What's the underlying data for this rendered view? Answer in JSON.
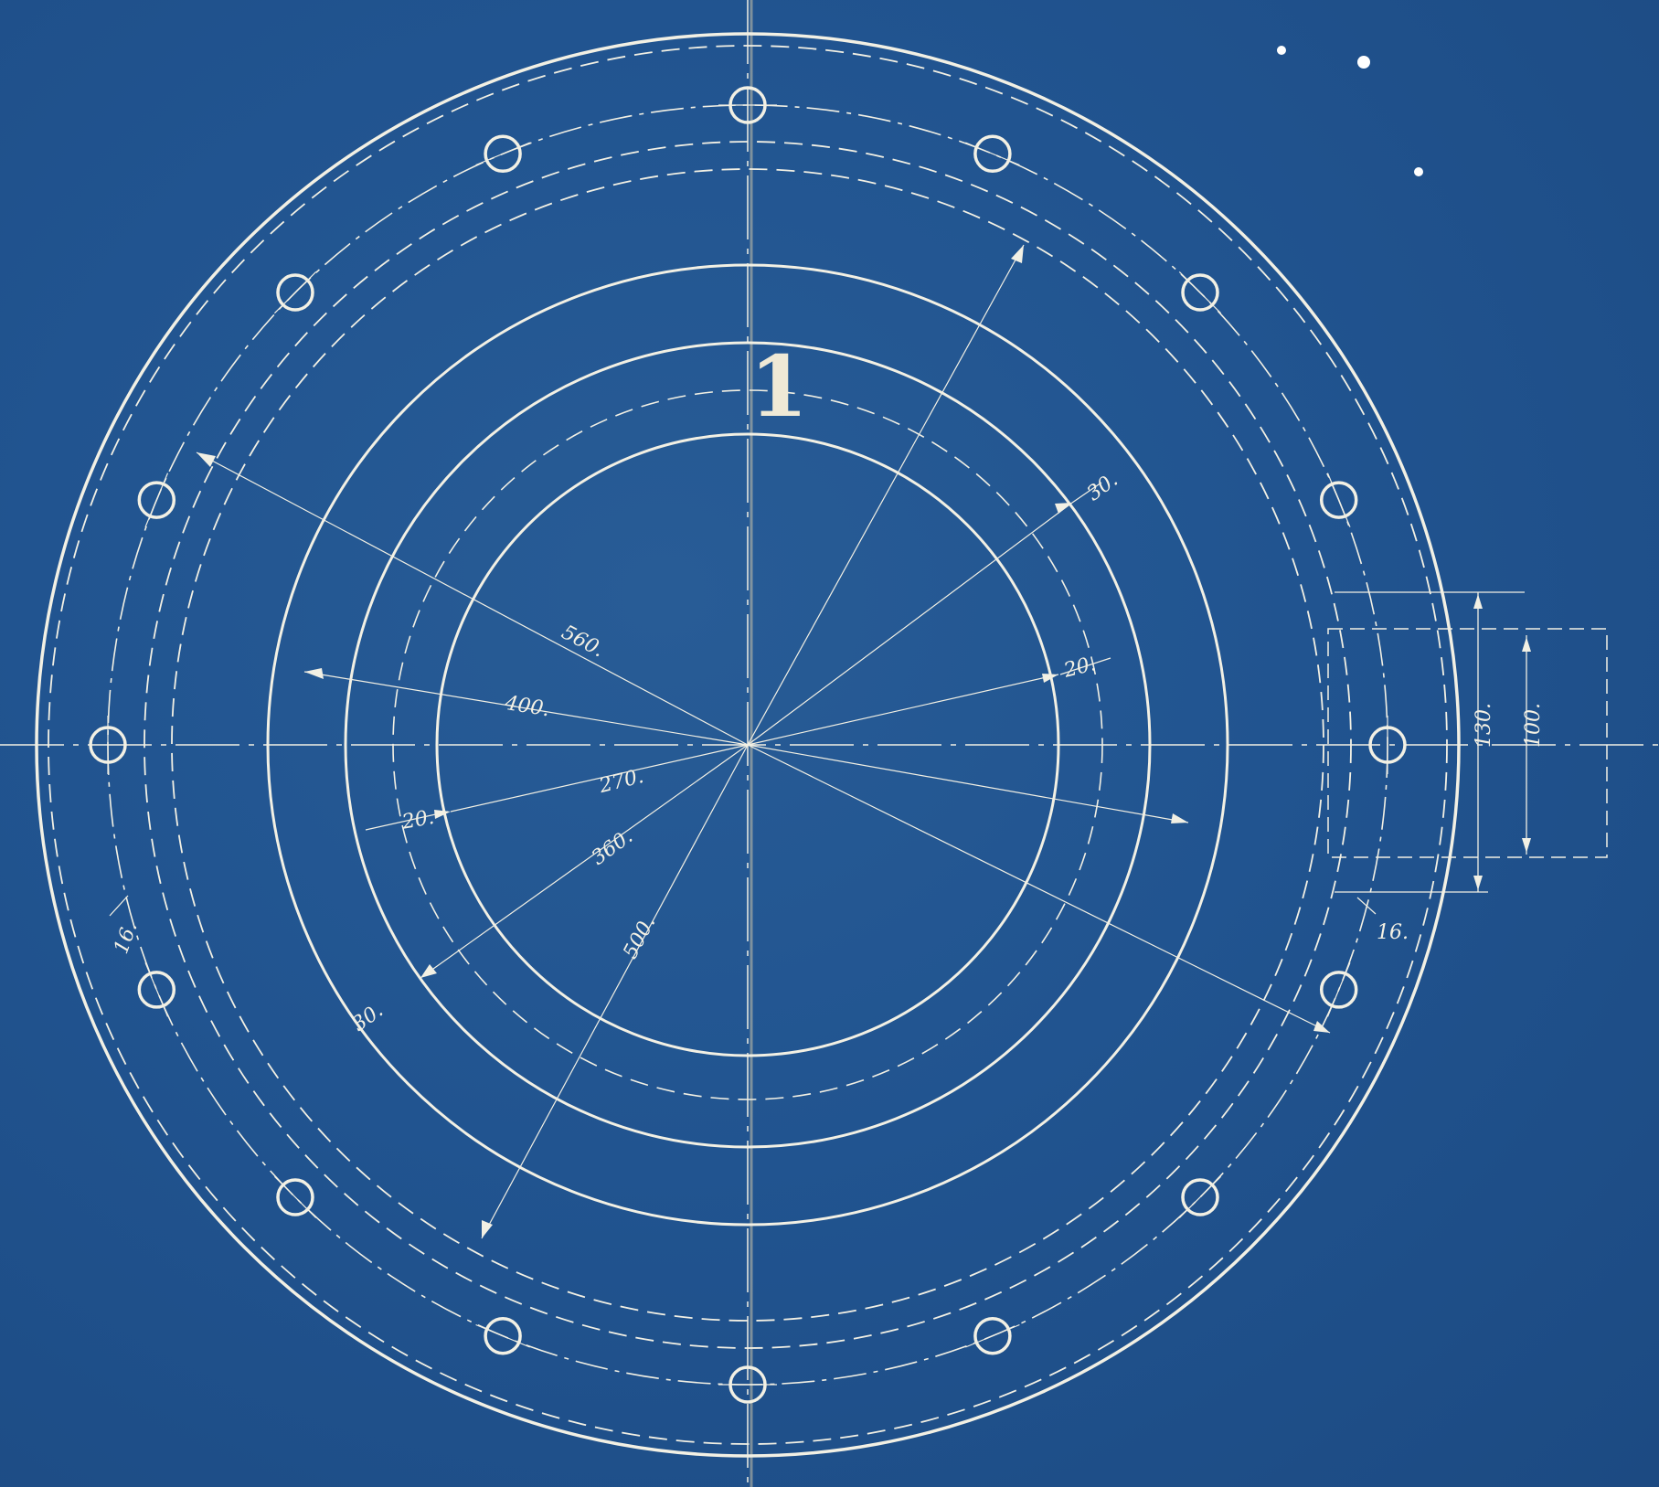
{
  "drawing": {
    "view_number": "1",
    "dimensions": {
      "d560": "560.",
      "d400": "400.",
      "d270": "270.",
      "d360": "360.",
      "d500": "500.",
      "w30_top": "30.",
      "w20_right": "20.",
      "w20_left": "20.",
      "w30_bottom": "30.",
      "hole_left": "16.",
      "hole_right": "16.",
      "lug_130": "130.",
      "lug_100": "100."
    },
    "bolt_hole_count": 16,
    "colors": {
      "paper": "#1f5189",
      "ink": "#f2f0e4"
    }
  }
}
